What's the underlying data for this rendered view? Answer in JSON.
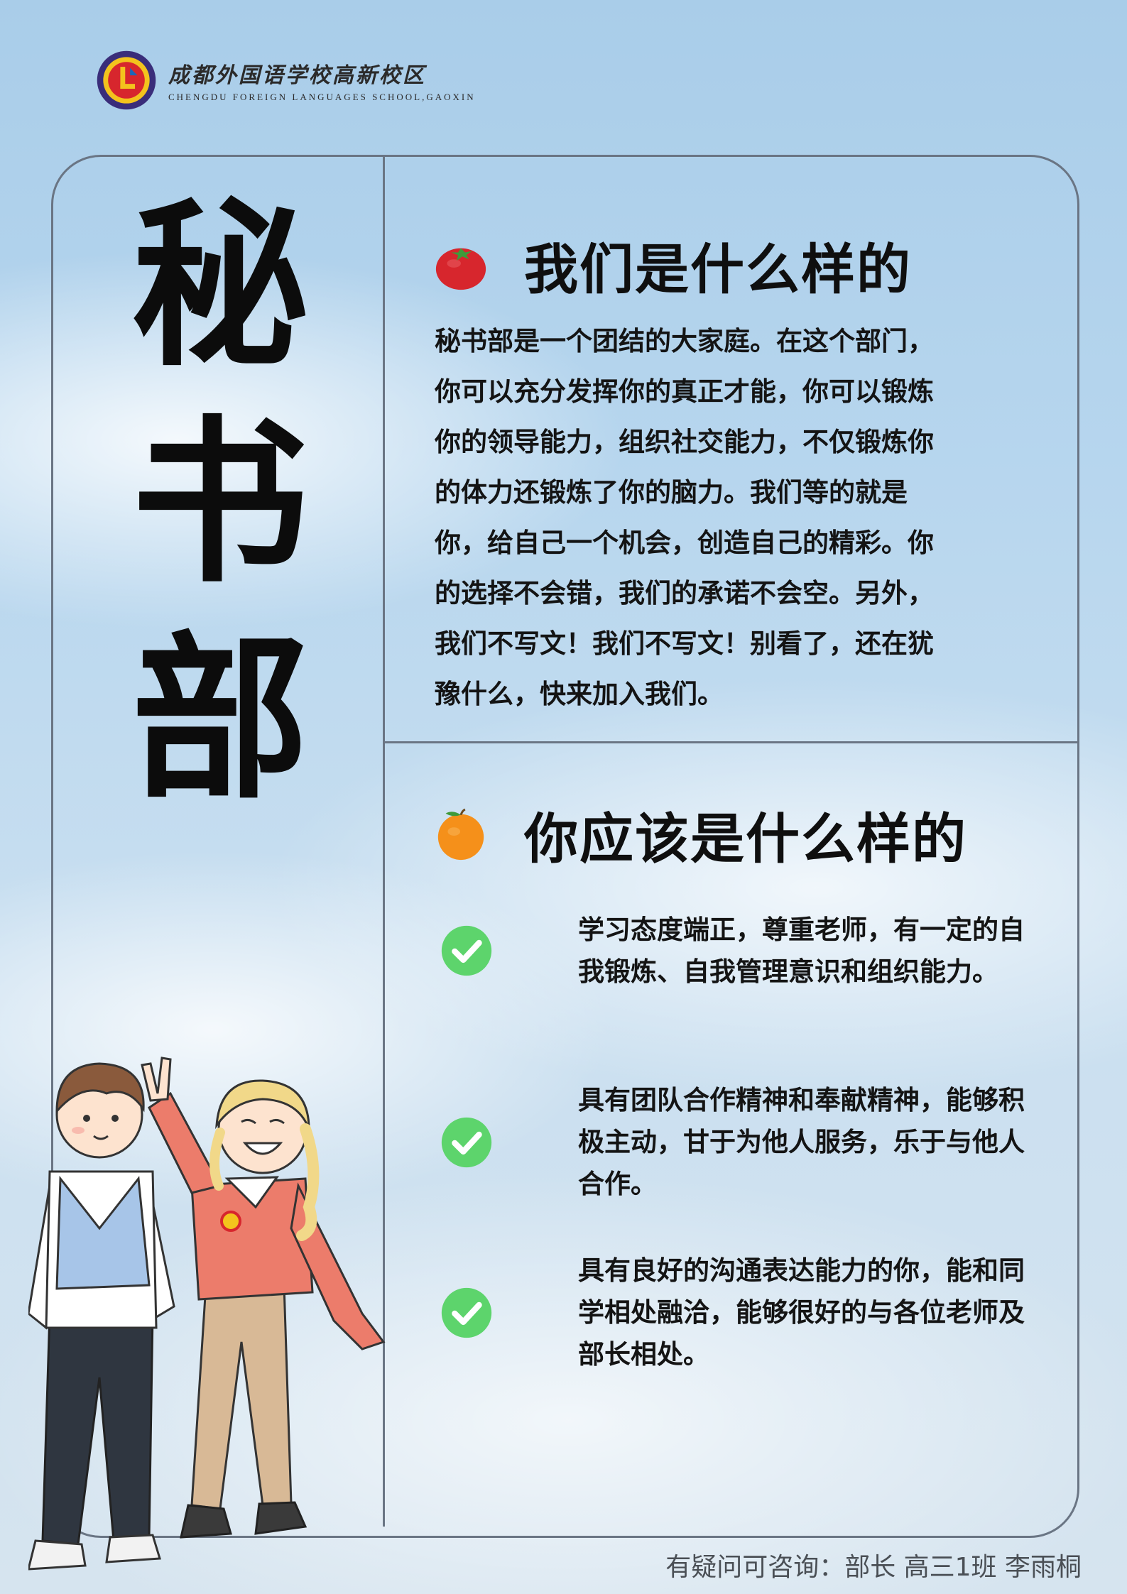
{
  "logo": {
    "name_cn": "成都外国语学校高新校区",
    "name_en": "CHENGDU FOREIGN LANGUAGES SCHOOL,GAOXIN"
  },
  "title_chars": [
    "秘",
    "书",
    "部"
  ],
  "section1": {
    "heading": "我们是什么样的",
    "icon": "tomato-icon",
    "lines": [
      "秘书部是一个团结的大家庭。在这个部门，",
      "你可以充分发挥你的真正才能，你可以锻炼",
      "你的领导能力，组织社交能力，不仅锻炼你",
      "的体力还锻炼了你的脑力。我们等的就是",
      "你，给自己一个机会，创造自己的精彩。你",
      "的选择不会错，我们的承诺不会空。另外，",
      "我们不写文！我们不写文！别看了，还在犹",
      "豫什么，快来加入我们。"
    ]
  },
  "section2": {
    "heading": "你应该是什么样的",
    "icon": "orange-icon",
    "items": [
      "学习态度端正，尊重老师，有一定的自我锻炼、自我管理意识和组织能力。",
      "具有团队合作精神和奉献精神，能够积极主动，甘于为他人服务，乐于与他人合作。",
      "具有良好的沟通表达能力的你，能和同学相处融洽，能够很好的与各位老师及部长相处。"
    ]
  },
  "footer": "有疑问可咨询：部长 高三1班 李雨桐",
  "colors": {
    "frame": "#6a7584",
    "check": "#5dd46c",
    "tomato": "#d7262d",
    "orange": "#f5901a"
  }
}
